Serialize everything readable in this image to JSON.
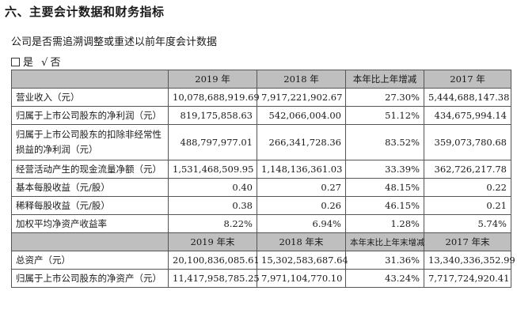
{
  "section_title": "六、主要会计数据和财务指标",
  "restatement_question": "公司是否需追溯调整或重述以前年度会计数据",
  "restatement_choice": {
    "yes_label": "是",
    "mark": "√",
    "no_label": "否"
  },
  "table1": {
    "headers": [
      "",
      "2019 年",
      "2018 年",
      "本年比上年增减",
      "2017 年"
    ],
    "rows": [
      [
        "营业收入（元）",
        "10,078,688,919.69",
        "7,917,221,902.67",
        "27.30%",
        "5,444,688,147.38"
      ],
      [
        "归属于上市公司股东的净利润（元）",
        "819,175,858.63",
        "542,066,004.00",
        "51.12%",
        "434,675,994.14"
      ],
      [
        "归属于上市公司股东的扣除非经常性损益的净利润（元）",
        "488,797,977.01",
        "266,341,728.36",
        "83.52%",
        "359,073,780.68"
      ],
      [
        "经营活动产生的现金流量净额（元）",
        "1,531,468,509.95",
        "1,148,136,361.03",
        "33.39%",
        "362,726,217.78"
      ],
      [
        "基本每股收益（元/股）",
        "0.40",
        "0.27",
        "48.15%",
        "0.22"
      ],
      [
        "稀释每股收益（元/股）",
        "0.38",
        "0.26",
        "46.15%",
        "0.21"
      ],
      [
        "加权平均净资产收益率",
        "8.22%",
        "6.94%",
        "1.28%",
        "5.74%"
      ]
    ]
  },
  "table2": {
    "headers": [
      "",
      "2019 年末",
      "2018 年末",
      "本年末比上年末增减",
      "2017 年末"
    ],
    "rows": [
      [
        "总资产（元）",
        "20,100,836,085.61",
        "15,302,583,687.64",
        "31.36%",
        "13,340,336,352.99"
      ],
      [
        "归属于上市公司股东的净资产（元）",
        "11,417,958,785.25",
        "7,971,104,770.10",
        "43.24%",
        "7,717,724,920.41"
      ]
    ]
  }
}
